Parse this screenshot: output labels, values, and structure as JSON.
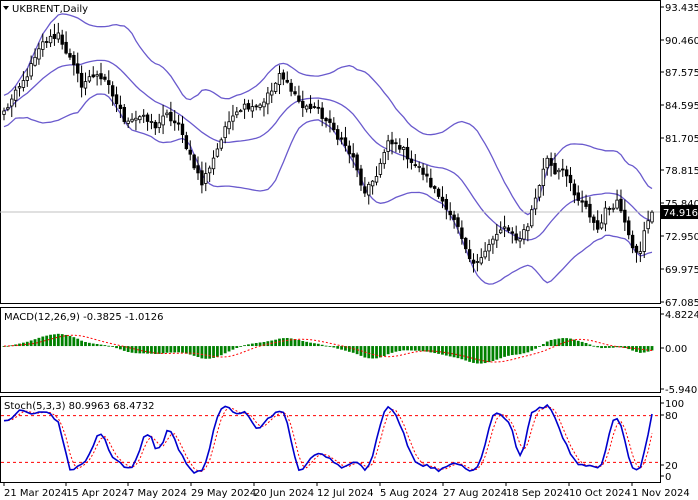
{
  "chart_data": [
    {
      "type": "candlestick",
      "title": "UKBRENT,Daily",
      "symbol": "UKBRENT",
      "timeframe": "Daily",
      "current_price": "74.916",
      "y_ticks": [
        "93.435",
        "90.460",
        "87.575",
        "84.595",
        "81.705",
        "78.815",
        "75.840",
        "72.950",
        "69.975",
        "67.085"
      ],
      "x_ticks": [
        "21 Mar 2024",
        "15 Apr 2024",
        "7 May 2024",
        "29 May 2024",
        "20 Jun 2024",
        "12 Jul 2024",
        "5 Aug 2024",
        "27 Aug 2024",
        "18 Sep 2024",
        "10 Oct 2024",
        "1 Nov 2024"
      ],
      "ylim": [
        67.085,
        93.435
      ],
      "close_anchors": [
        [
          0,
          83.8
        ],
        [
          5,
          86.5
        ],
        [
          10,
          89.9
        ],
        [
          14,
          90.8
        ],
        [
          17,
          88.5
        ],
        [
          20,
          86.3
        ],
        [
          24,
          87.3
        ],
        [
          27,
          86.0
        ],
        [
          31,
          83.2
        ],
        [
          35,
          83.4
        ],
        [
          39,
          82.6
        ],
        [
          42,
          83.5
        ],
        [
          45,
          82.5
        ],
        [
          48,
          80.0
        ],
        [
          51,
          77.4
        ],
        [
          53,
          79.0
        ],
        [
          56,
          81.4
        ],
        [
          59,
          83.8
        ],
        [
          62,
          84.4
        ],
        [
          66,
          84.5
        ],
        [
          69,
          85.7
        ],
        [
          71,
          87.0
        ],
        [
          74,
          86.0
        ],
        [
          77,
          84.2
        ],
        [
          80,
          84.3
        ],
        [
          84,
          82.6
        ],
        [
          87,
          81.3
        ],
        [
          90,
          79.6
        ],
        [
          93,
          76.4
        ],
        [
          96,
          78.3
        ],
        [
          99,
          81.0
        ],
        [
          102,
          80.8
        ],
        [
          105,
          79.5
        ],
        [
          108,
          78.4
        ],
        [
          111,
          76.8
        ],
        [
          114,
          75.5
        ],
        [
          117,
          73.4
        ],
        [
          119,
          71.3
        ],
        [
          121,
          70.1
        ],
        [
          123,
          71.2
        ],
        [
          126,
          72.4
        ],
        [
          129,
          73.6
        ],
        [
          132,
          72.3
        ],
        [
          135,
          73.8
        ],
        [
          137,
          76.2
        ],
        [
          140,
          79.8
        ],
        [
          142,
          78.5
        ],
        [
          144,
          79.0
        ],
        [
          147,
          76.3
        ],
        [
          150,
          75.2
        ],
        [
          153,
          73.4
        ],
        [
          155,
          75.0
        ],
        [
          158,
          75.9
        ],
        [
          160,
          74.3
        ],
        [
          162,
          72.0
        ],
        [
          164,
          71.2
        ],
        [
          165,
          73.1
        ],
        [
          167,
          74.9
        ]
      ],
      "candle_count": 168,
      "bollinger": {
        "period": 20,
        "deviations": 2
      }
    },
    {
      "type": "bar",
      "title": "MACD(12,26,9) -0.3825 -1.0126",
      "indicator": "MACD",
      "parameters": "(12,26,9)",
      "values_text": "-0.3825 -1.0126",
      "y_ticks": [
        "4.8224",
        "0.00",
        "-5.9405"
      ],
      "ylim": [
        -5.9405,
        4.8224
      ]
    },
    {
      "type": "line",
      "title": "Stoch(5,3,3) 80.9963 68.4732",
      "indicator": "Stochastic",
      "parameters": "(5,3,3)",
      "values_text": "80.9963 68.4732",
      "y_ticks": [
        "100",
        "80",
        "20",
        "0"
      ],
      "levels": [
        80,
        20
      ],
      "ylim": [
        0,
        100
      ]
    }
  ],
  "colors": {
    "bull_body": "#ffffff",
    "bear_body": "#000000",
    "bollinger": "#6a5acd",
    "macd_bar": "#008000",
    "macd_signal": "#ff0000",
    "stoch_main": "#0000cd",
    "stoch_signal": "#ff0000",
    "current_price_box": "#000000"
  }
}
